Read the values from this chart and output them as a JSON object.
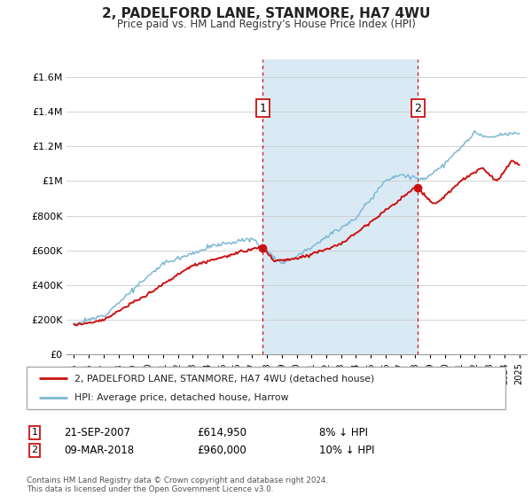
{
  "title": "2, PADELFORD LANE, STANMORE, HA7 4WU",
  "subtitle": "Price paid vs. HM Land Registry's House Price Index (HPI)",
  "ylabel_ticks": [
    "£0",
    "£200K",
    "£400K",
    "£600K",
    "£800K",
    "£1M",
    "£1.2M",
    "£1.4M",
    "£1.6M"
  ],
  "ytick_values": [
    0,
    200000,
    400000,
    600000,
    800000,
    1000000,
    1200000,
    1400000,
    1600000
  ],
  "ylim": [
    0,
    1700000
  ],
  "hpi_color": "#7eb8d4",
  "price_color": "#cc1111",
  "shade_color": "#daeaf5",
  "purchase1_x": 2007.73,
  "purchase1_y": 614950,
  "purchase2_x": 2018.18,
  "purchase2_y": 960000,
  "purchase1_date": "21-SEP-2007",
  "purchase1_price": "£614,950",
  "purchase1_hpi": "8% ↓ HPI",
  "purchase2_date": "09-MAR-2018",
  "purchase2_price": "£960,000",
  "purchase2_hpi": "10% ↓ HPI",
  "legend_line1": "2, PADELFORD LANE, STANMORE, HA7 4WU (detached house)",
  "legend_line2": "HPI: Average price, detached house, Harrow",
  "footer": "Contains HM Land Registry data © Crown copyright and database right 2024.\nThis data is licensed under the Open Government Licence v3.0.",
  "xlim_start": 1994.5,
  "xlim_end": 2025.5
}
